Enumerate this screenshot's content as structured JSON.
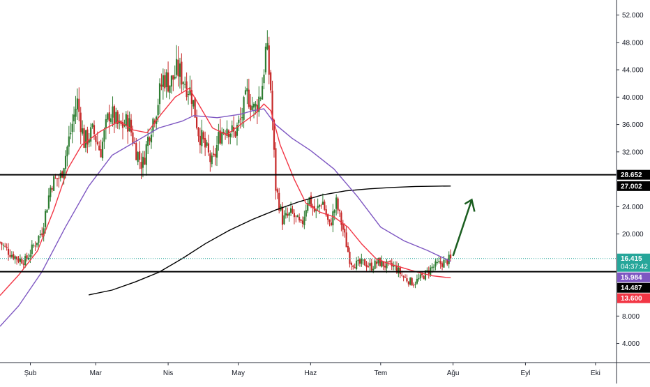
{
  "chart_data": {
    "type": "candlestick",
    "y_axis": {
      "ticks": [
        52000,
        48000,
        44000,
        40000,
        36000,
        32000,
        24000,
        20000,
        8000,
        4000
      ],
      "tick_labels": [
        "52.000",
        "48.000",
        "44.000",
        "40.000",
        "36.000",
        "32.000",
        "24.000",
        "20.000",
        "8.000",
        "4.000"
      ],
      "range": [
        1200,
        54200
      ],
      "position": "right"
    },
    "x_axis": {
      "tick_labels": [
        "Şub",
        "Mar",
        "Nis",
        "May",
        "Haz",
        "Tem",
        "Ağu",
        "Eyl",
        "Eki"
      ],
      "tick_days": [
        0,
        28,
        59,
        89,
        120,
        150,
        181,
        212,
        242
      ],
      "range_days": [
        -13,
        251
      ]
    },
    "price_labels": [
      {
        "text": "28.652",
        "value": 28652,
        "color": "#000000",
        "text_color": "#ffffff"
      },
      {
        "text": "27.002",
        "value": 27002,
        "color": "#000000",
        "text_color": "#ffffff"
      },
      {
        "text": "16.415",
        "value": 16415,
        "color": "#26a69a",
        "text_color": "#ffffff",
        "countdown": "04:37:42"
      },
      {
        "text": "15.984",
        "value": 15984,
        "color": "#7e57c2",
        "text_color": "#ffffff"
      },
      {
        "text": "14.487",
        "value": 14487,
        "color": "#000000",
        "text_color": "#ffffff"
      },
      {
        "text": "13.600",
        "value": 13600,
        "color": "#f23645",
        "text_color": "#ffffff"
      }
    ],
    "horizontal_lines": [
      {
        "name": "resistance",
        "value": 28652,
        "color": "#000000"
      },
      {
        "name": "support",
        "value": 14487,
        "color": "#000000"
      }
    ],
    "last_price_line": {
      "value": 16415,
      "color": "#26a69a"
    },
    "candle_anchors": [
      [
        -13,
        18800
      ],
      [
        -9,
        17300
      ],
      [
        -5,
        16300
      ],
      [
        -2,
        16100
      ],
      [
        2,
        18600
      ],
      [
        5,
        20500
      ],
      [
        9,
        27500
      ],
      [
        13,
        28400
      ],
      [
        17,
        34500
      ],
      [
        20,
        39500
      ],
      [
        23,
        33500
      ],
      [
        27,
        35000
      ],
      [
        30,
        32000
      ],
      [
        34,
        38000
      ],
      [
        38,
        35500
      ],
      [
        42,
        36500
      ],
      [
        45,
        32500
      ],
      [
        48,
        30000
      ],
      [
        51,
        35000
      ],
      [
        54,
        38500
      ],
      [
        57,
        43000
      ],
      [
        60,
        42000
      ],
      [
        63,
        44000
      ],
      [
        66,
        42500
      ],
      [
        69,
        40500
      ],
      [
        72,
        35000
      ],
      [
        75,
        32500
      ],
      [
        78,
        30000
      ],
      [
        81,
        34500
      ],
      [
        84,
        36000
      ],
      [
        87,
        34500
      ],
      [
        90,
        36500
      ],
      [
        93,
        40500
      ],
      [
        96,
        38000
      ],
      [
        99,
        41000
      ],
      [
        101,
        47500
      ],
      [
        103,
        41000
      ],
      [
        105,
        27000
      ],
      [
        108,
        22000
      ],
      [
        112,
        23000
      ],
      [
        116,
        21000
      ],
      [
        119,
        25500
      ],
      [
        122,
        23000
      ],
      [
        125,
        25000
      ],
      [
        128,
        21000
      ],
      [
        131,
        24500
      ],
      [
        134,
        20500
      ],
      [
        137,
        16000
      ],
      [
        140,
        15500
      ],
      [
        143,
        15800
      ],
      [
        146,
        15200
      ],
      [
        149,
        15900
      ],
      [
        152,
        15400
      ],
      [
        156,
        15200
      ],
      [
        160,
        13600
      ],
      [
        164,
        12800
      ],
      [
        168,
        13800
      ],
      [
        172,
        15100
      ],
      [
        175,
        15600
      ],
      [
        178,
        16000
      ],
      [
        180,
        16415
      ]
    ],
    "indicators": [
      {
        "name": "",
        "color": "#000000",
        "points": [
          [
            25,
            11100
          ],
          [
            35,
            11800
          ],
          [
            45,
            13000
          ],
          [
            55,
            14400
          ],
          [
            65,
            16400
          ],
          [
            75,
            18600
          ],
          [
            85,
            20500
          ],
          [
            95,
            22100
          ],
          [
            105,
            23500
          ],
          [
            115,
            24700
          ],
          [
            125,
            25700
          ],
          [
            135,
            26300
          ],
          [
            145,
            26600
          ],
          [
            155,
            26800
          ],
          [
            165,
            26950
          ],
          [
            175,
            27000
          ],
          [
            180,
            27002
          ]
        ]
      },
      {
        "name": "",
        "color": "#7e57c2",
        "points": [
          [
            -13,
            6500
          ],
          [
            -5,
            9500
          ],
          [
            5,
            14500
          ],
          [
            15,
            21000
          ],
          [
            25,
            27000
          ],
          [
            35,
            31500
          ],
          [
            45,
            33500
          ],
          [
            55,
            35500
          ],
          [
            65,
            36500
          ],
          [
            70,
            37300
          ],
          [
            80,
            37000
          ],
          [
            90,
            37500
          ],
          [
            95,
            38000
          ],
          [
            100,
            38300
          ],
          [
            105,
            36000
          ],
          [
            112,
            34000
          ],
          [
            120,
            32200
          ],
          [
            130,
            29500
          ],
          [
            140,
            25500
          ],
          [
            150,
            21000
          ],
          [
            160,
            19000
          ],
          [
            170,
            17600
          ],
          [
            180,
            15984
          ]
        ]
      },
      {
        "name": "",
        "color": "#f23645",
        "points": [
          [
            -13,
            11000
          ],
          [
            -5,
            14000
          ],
          [
            3,
            17500
          ],
          [
            10,
            23500
          ],
          [
            16,
            29500
          ],
          [
            22,
            33000
          ],
          [
            30,
            35000
          ],
          [
            38,
            36500
          ],
          [
            44,
            35200
          ],
          [
            50,
            34800
          ],
          [
            56,
            37500
          ],
          [
            62,
            40000
          ],
          [
            68,
            41300
          ],
          [
            72,
            39000
          ],
          [
            78,
            35500
          ],
          [
            84,
            34500
          ],
          [
            90,
            36000
          ],
          [
            96,
            37500
          ],
          [
            100,
            39000
          ],
          [
            103,
            38000
          ],
          [
            107,
            33000
          ],
          [
            113,
            28000
          ],
          [
            118,
            24500
          ],
          [
            124,
            23200
          ],
          [
            130,
            22500
          ],
          [
            136,
            21000
          ],
          [
            142,
            18500
          ],
          [
            148,
            16400
          ],
          [
            154,
            15600
          ],
          [
            160,
            15000
          ],
          [
            166,
            14400
          ],
          [
            172,
            13900
          ],
          [
            178,
            13650
          ],
          [
            180,
            13600
          ]
        ]
      }
    ],
    "annotation_arrow": {
      "from": [
        181,
        16800
      ],
      "to": [
        189,
        25000
      ],
      "color": "#1b5e20"
    },
    "colors": {
      "up": "#26a69a",
      "up_fill": "#089981",
      "down": "#ef5350",
      "candle_up": "#2e7d32",
      "candle_down": "#c62828"
    }
  }
}
